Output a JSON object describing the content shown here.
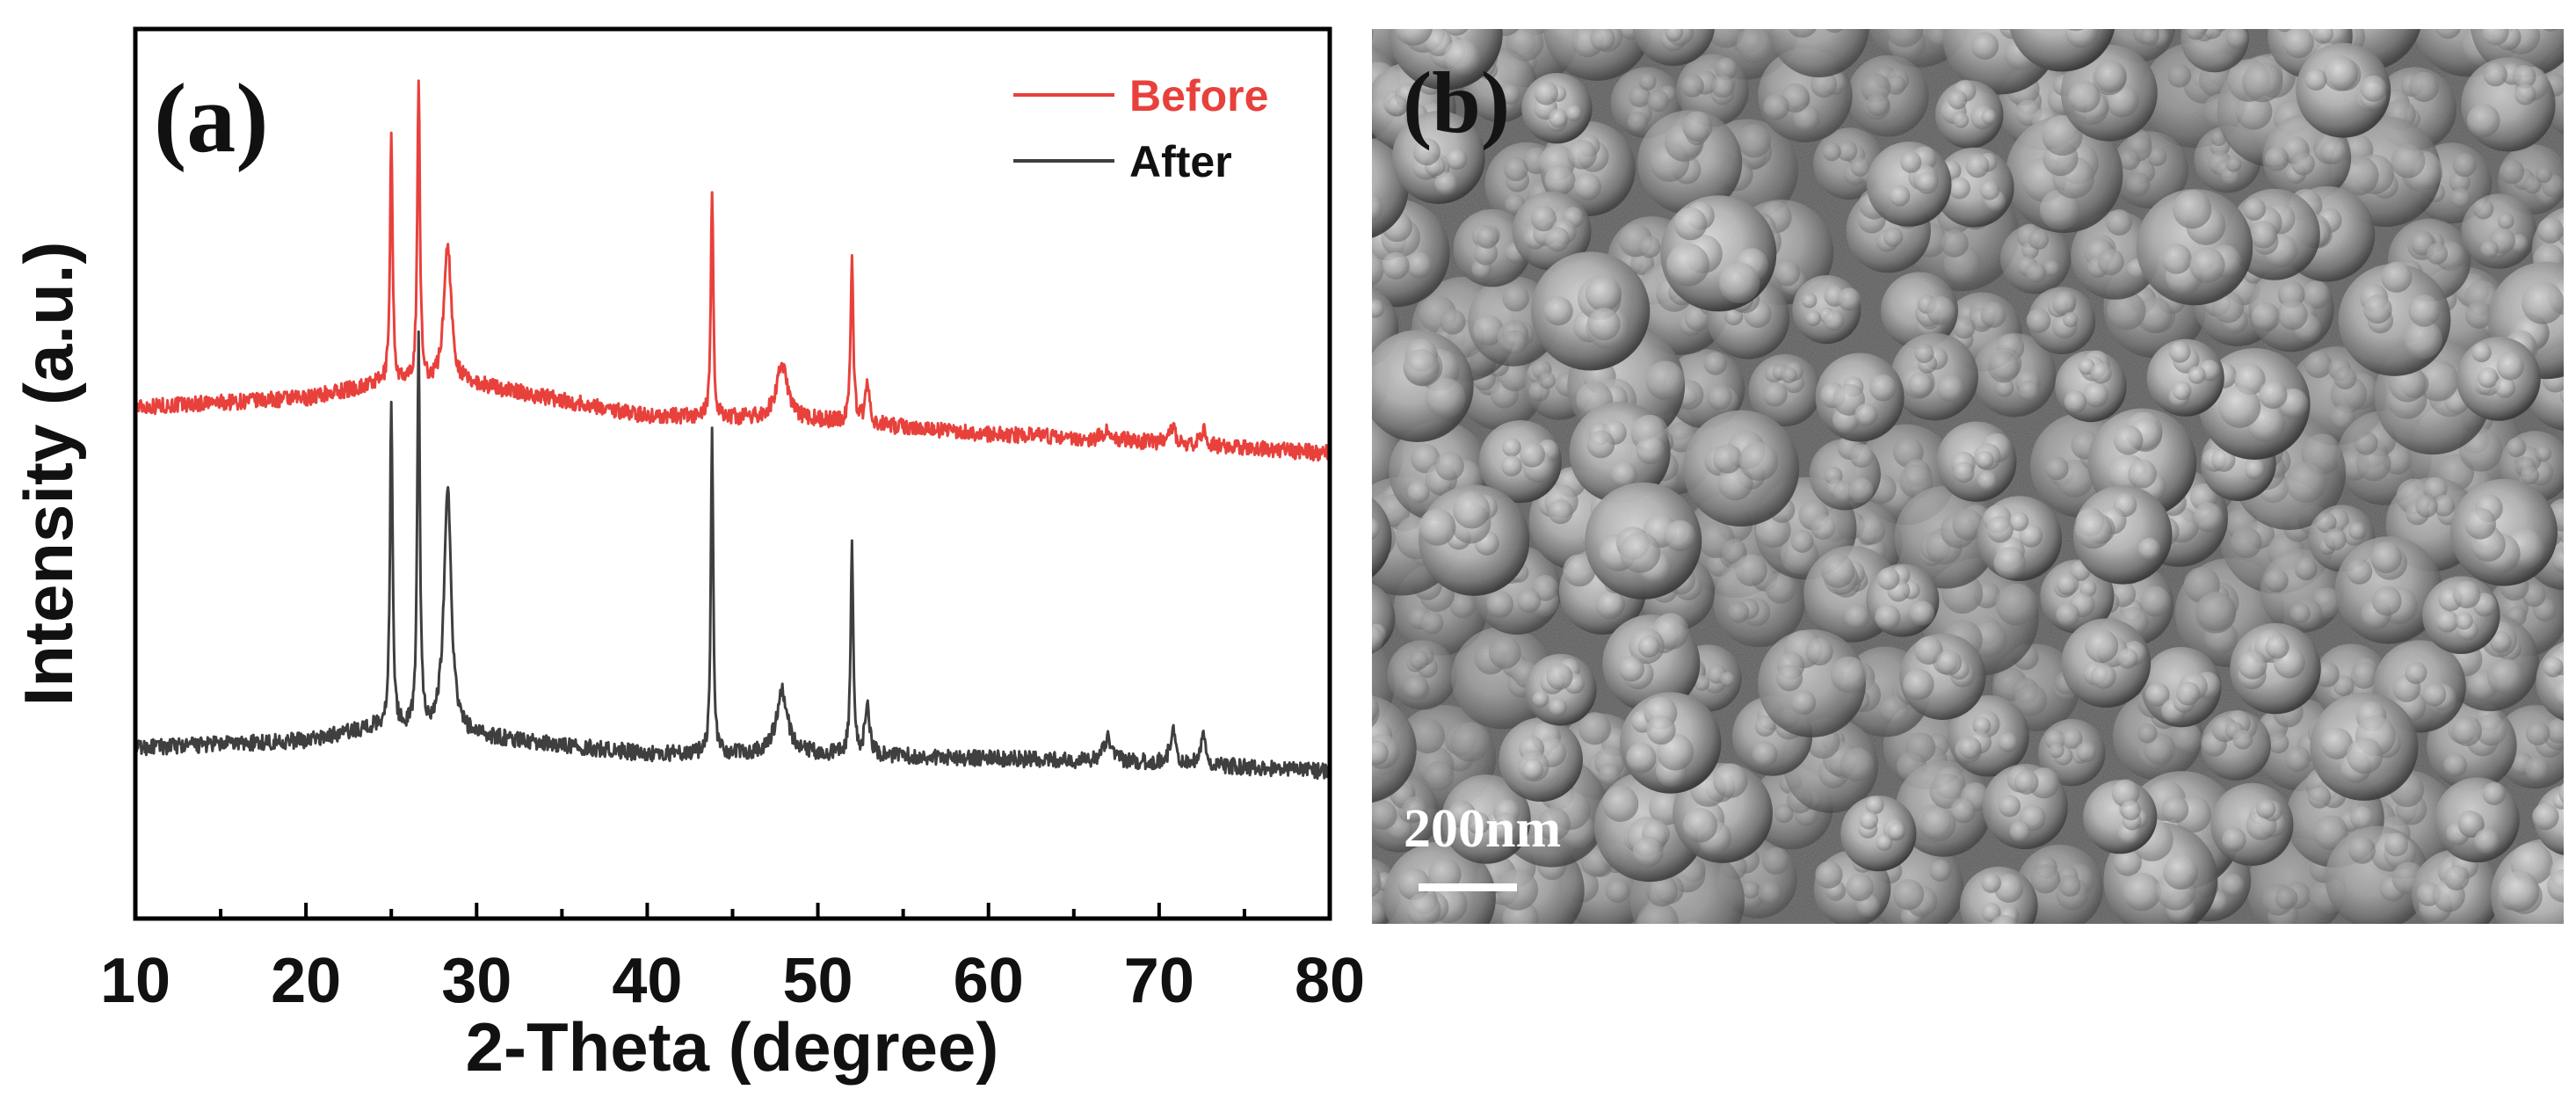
{
  "chart_data": {
    "type": "line",
    "panel_label": "(a)",
    "xlabel": "2-Theta (degree)",
    "ylabel": "Intensity (a.u.)",
    "xlim": [
      10,
      80
    ],
    "ylim": [
      0,
      1
    ],
    "x_ticks": [
      10,
      20,
      30,
      40,
      50,
      60,
      70,
      80
    ],
    "y_ticks_labeled": false,
    "grid": false,
    "legend_position": "top-right",
    "series": [
      {
        "name": "Before",
        "color": "#e8413c",
        "baseline": [
          [
            10,
            0.575
          ],
          [
            20,
            0.585
          ],
          [
            24,
            0.6
          ],
          [
            30,
            0.6
          ],
          [
            40,
            0.565
          ],
          [
            50,
            0.56
          ],
          [
            60,
            0.545
          ],
          [
            70,
            0.535
          ],
          [
            80,
            0.523
          ]
        ],
        "peaks": [
          {
            "x": 25.0,
            "height": 0.28,
            "width": 0.18
          },
          {
            "x": 26.6,
            "height": 0.34,
            "width": 0.18
          },
          {
            "x": 28.3,
            "height": 0.16,
            "width": 0.5
          },
          {
            "x": 43.8,
            "height": 0.26,
            "width": 0.16
          },
          {
            "x": 47.9,
            "height": 0.06,
            "width": 0.8
          },
          {
            "x": 52.0,
            "height": 0.19,
            "width": 0.18
          },
          {
            "x": 52.9,
            "height": 0.04,
            "width": 0.3
          },
          {
            "x": 67.0,
            "height": 0.012,
            "width": 0.6
          },
          {
            "x": 70.8,
            "height": 0.018,
            "width": 0.4
          },
          {
            "x": 72.6,
            "height": 0.02,
            "width": 0.3
          }
        ],
        "noise": 0.009
      },
      {
        "name": "After",
        "color": "#3f3f3f",
        "baseline": [
          [
            10,
            0.192
          ],
          [
            20,
            0.2
          ],
          [
            24,
            0.215
          ],
          [
            30,
            0.205
          ],
          [
            40,
            0.185
          ],
          [
            50,
            0.185
          ],
          [
            60,
            0.18
          ],
          [
            70,
            0.175
          ],
          [
            80,
            0.165
          ]
        ],
        "peaks": [
          {
            "x": 25.0,
            "height": 0.37,
            "width": 0.18
          },
          {
            "x": 26.6,
            "height": 0.44,
            "width": 0.18
          },
          {
            "x": 28.3,
            "height": 0.28,
            "width": 0.5
          },
          {
            "x": 43.8,
            "height": 0.37,
            "width": 0.16
          },
          {
            "x": 47.9,
            "height": 0.07,
            "width": 0.8
          },
          {
            "x": 52.0,
            "height": 0.23,
            "width": 0.18
          },
          {
            "x": 52.9,
            "height": 0.06,
            "width": 0.3
          },
          {
            "x": 67.0,
            "height": 0.025,
            "width": 0.6
          },
          {
            "x": 70.8,
            "height": 0.035,
            "width": 0.4
          },
          {
            "x": 72.6,
            "height": 0.04,
            "width": 0.3
          }
        ],
        "noise": 0.009
      }
    ]
  },
  "sem_image": {
    "panel_label": "(b)",
    "scale_bar_label": "200nm",
    "description_icon": "sem-micrograph"
  }
}
